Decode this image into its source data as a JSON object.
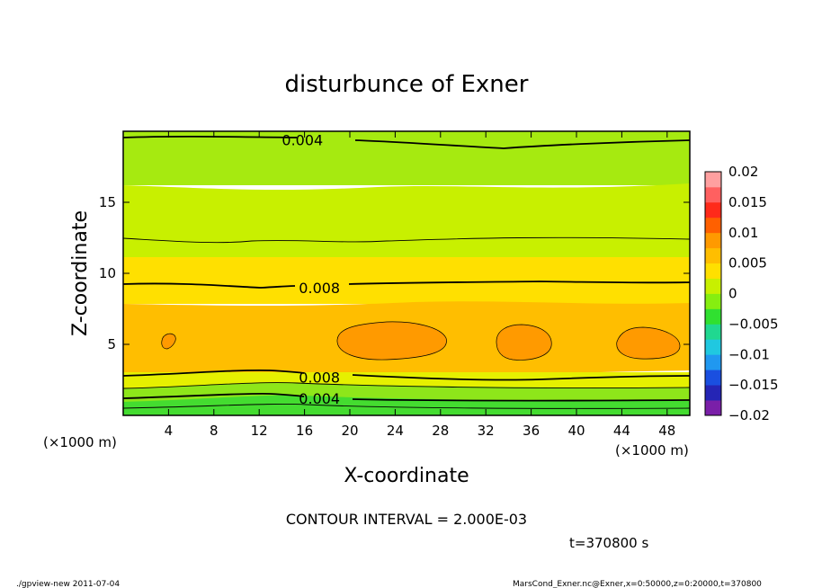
{
  "chart_data": {
    "type": "heatmap",
    "title": "disturbunce of Exner",
    "xlabel": "X-coordinate",
    "ylabel": "Z-coordinate",
    "x_unit": "(×1000 m)",
    "y_unit": "(×1000 m)",
    "xlim": [
      0,
      50
    ],
    "ylim": [
      0,
      20
    ],
    "x_ticks": [
      4,
      8,
      12,
      16,
      20,
      24,
      28,
      32,
      36,
      40,
      44,
      48
    ],
    "y_ticks": [
      5,
      10,
      15
    ],
    "colorbar": {
      "ticks": [
        "0.02",
        "0.015",
        "0.01",
        "0.005",
        "0",
        "−0.005",
        "−0.01",
        "−0.015",
        "−0.02"
      ],
      "range": [
        -0.02,
        0.02
      ],
      "colors": [
        "#7a1fa8",
        "#2525b5",
        "#1a4fe0",
        "#2098f0",
        "#20c8e0",
        "#20d890",
        "#30e030",
        "#86ee10",
        "#c8f000",
        "#ffe000",
        "#ffbe00",
        "#ff9a00",
        "#ff6000",
        "#ff2a1a",
        "#ff6060",
        "#ffa0a0"
      ]
    },
    "contour_labels": [
      {
        "text": "0.004",
        "x": 14,
        "z": 19.4
      },
      {
        "text": "0.008",
        "x": 15.5,
        "z": 9.0
      },
      {
        "text": "0.008",
        "x": 15.5,
        "z": 2.7
      },
      {
        "text": "0.004",
        "x": 15.5,
        "z": 1.2
      }
    ],
    "contour_interval": "CONTOUR INTERVAL = 2.000E-03",
    "time": "t=370800  s",
    "footer_left": "./gpview-new   2011-07-04",
    "footer_right": "MarsCond_Exner.nc@Exner,x=0:50000,z=0:20000,t=370800"
  }
}
